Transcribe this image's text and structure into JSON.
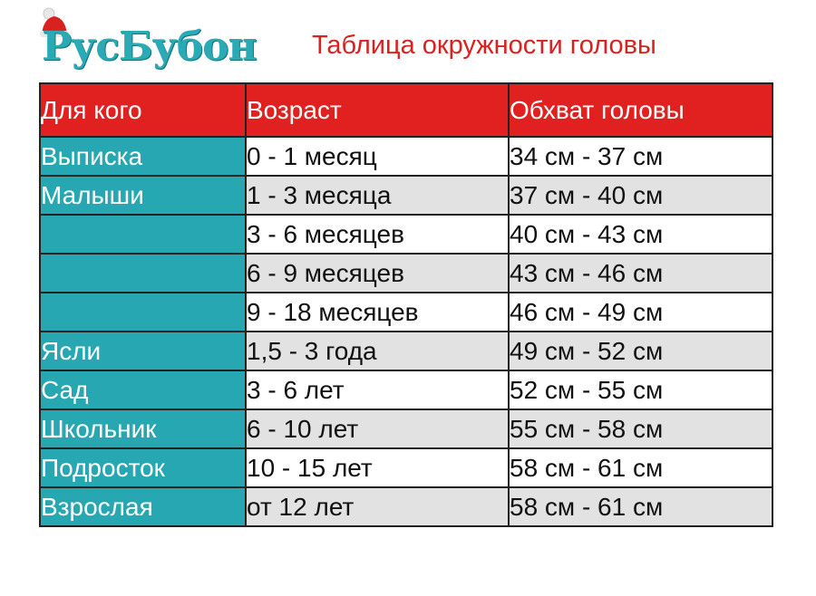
{
  "logo": {
    "brand_text": "РусБубон",
    "icon": "hat-icon"
  },
  "title": "Таблица окружности головы",
  "table": {
    "headers": [
      "Для кого",
      "Возраст",
      "Обхват головы"
    ],
    "rows": [
      {
        "who": "Выписка",
        "age": "0 - 1 месяц",
        "head": "34 см - 37 см"
      },
      {
        "who": "Малыши",
        "age": "1 - 3 месяца",
        "head": "37 см - 40 см"
      },
      {
        "who": "",
        "age": "3 - 6 месяцев",
        "head": "40 см - 43 см"
      },
      {
        "who": "",
        "age": "6 - 9 месяцев",
        "head": "43 см - 46 см"
      },
      {
        "who": "",
        "age": "9 - 18 месяцев",
        "head": "46 см - 49 см"
      },
      {
        "who": "Ясли",
        "age": "1,5 - 3 года",
        "head": "49 см - 52 см"
      },
      {
        "who": "Сад",
        "age": "3 - 6 лет",
        "head": "52 см - 55 см"
      },
      {
        "who": "Школьник",
        "age": "6 - 10 лет",
        "head": "55 см - 58 см"
      },
      {
        "who": "Подросток",
        "age": "10 - 15 лет",
        "head": "58 см - 61 см"
      },
      {
        "who": "Взрослая",
        "age": "от 12 лет",
        "head": "58 см - 61 см"
      }
    ]
  },
  "colors": {
    "header_bg": "#e0211f",
    "first_col_bg": "#27a7b2",
    "alt_row_bg": "#e2e2e2",
    "title_color": "#d9211f"
  }
}
